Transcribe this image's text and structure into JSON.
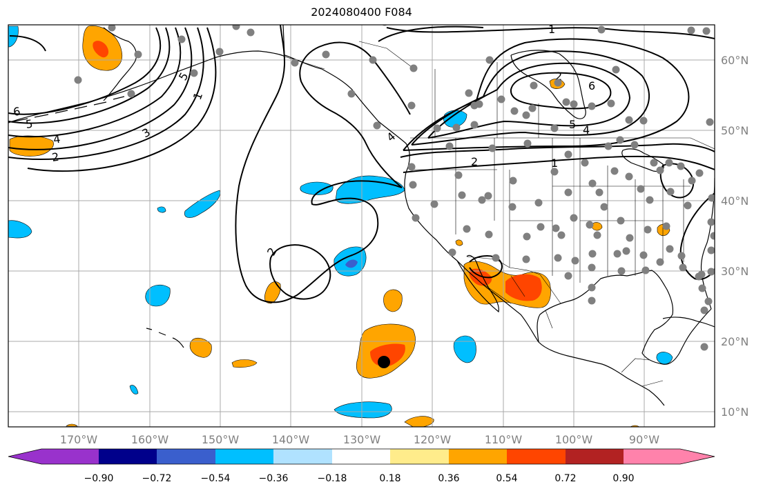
{
  "title": "2024080400 F084",
  "lat_labels": [
    "60°N",
    "50°N",
    "40°N",
    "30°N",
    "20°N",
    "10°N"
  ],
  "lon_labels": [
    "170°W",
    "160°W",
    "150°W",
    "140°W",
    "130°W",
    "120°W",
    "110°W",
    "100°W",
    "90°W"
  ],
  "colorbar": {
    "ticks": [
      "−0.90",
      "−0.72",
      "−0.54",
      "−0.36",
      "−0.18",
      "0.18",
      "0.36",
      "0.54",
      "0.72",
      "0.90"
    ],
    "colors": [
      "#9932cc",
      "#00008b",
      "#3a5fcd",
      "#00bfff",
      "#b0e2ff",
      "#ffffff",
      "#ffec8b",
      "#ffa500",
      "#ff4500",
      "#b22222",
      "#ff82ab"
    ]
  },
  "contour_labels": [
    "1",
    "2",
    "3",
    "4",
    "5",
    "6",
    "6",
    "5",
    "4",
    "2",
    "1",
    "1",
    "2",
    "2",
    "5",
    "4"
  ],
  "colors": {
    "grid": "#a9a9a9",
    "station": "#808080",
    "tc_marker": "#000000",
    "orange": "#ffa500",
    "red_orange": "#ff4500",
    "cyan": "#00bfff",
    "blue": "#3a5fcd"
  }
}
